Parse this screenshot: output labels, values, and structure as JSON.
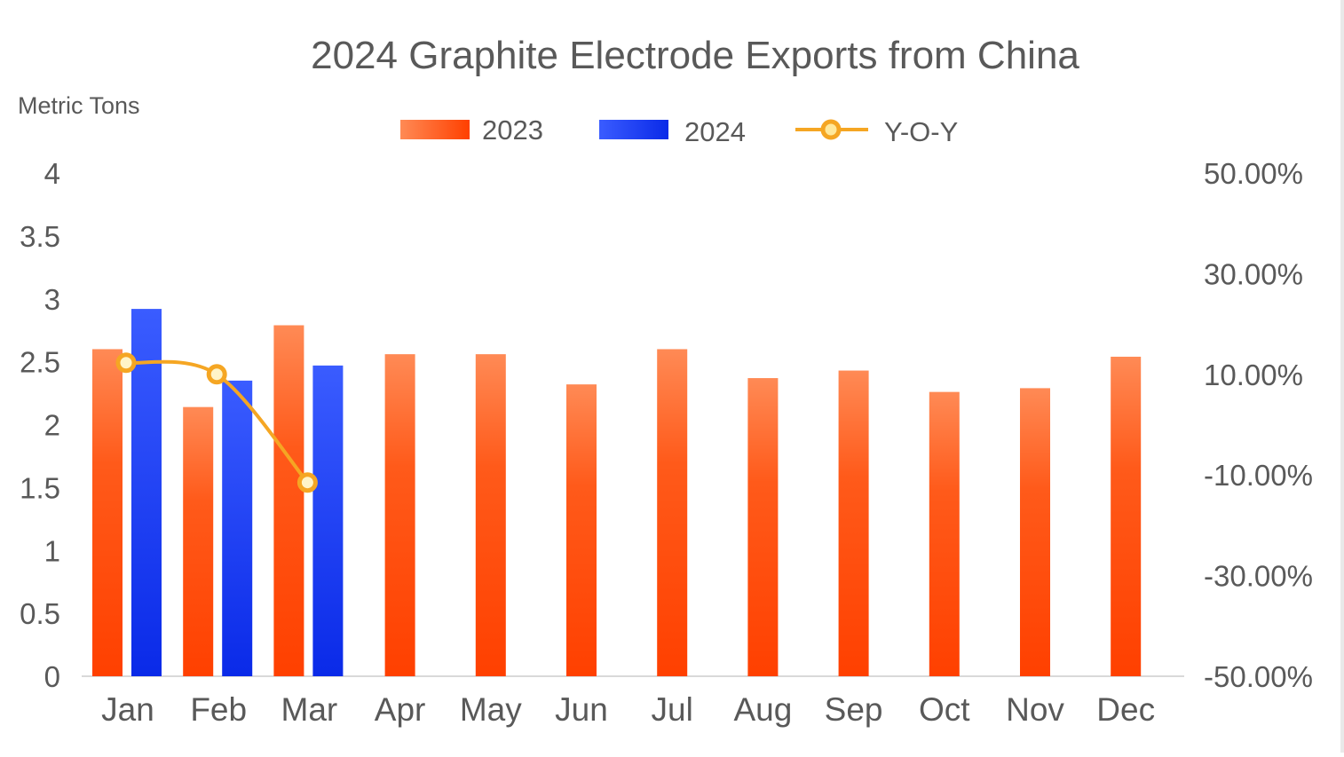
{
  "chart_data": {
    "type": "bar",
    "title": "2024 Graphite Electrode Exports from China",
    "y_axis_label": "Metric Tons",
    "categories": [
      "Jan",
      "Feb",
      "Mar",
      "Apr",
      "May",
      "Jun",
      "Jul",
      "Aug",
      "Sep",
      "Oct",
      "Nov",
      "Dec"
    ],
    "series": [
      {
        "name": "2023",
        "type": "bar",
        "axis": "left",
        "color": "#ff4500",
        "values": [
          2.6,
          2.14,
          2.79,
          2.56,
          2.56,
          2.32,
          2.6,
          2.37,
          2.43,
          2.26,
          2.29,
          2.54
        ]
      },
      {
        "name": "2024",
        "type": "bar",
        "axis": "left",
        "color": "#1a3cf5",
        "values": [
          2.92,
          2.35,
          2.47,
          null,
          null,
          null,
          null,
          null,
          null,
          null,
          null,
          null
        ]
      },
      {
        "name": "Y-O-Y",
        "type": "line",
        "axis": "right",
        "color": "#f5a623",
        "values": [
          12.3,
          10.0,
          -11.5,
          null,
          null,
          null,
          null,
          null,
          null,
          null,
          null,
          null
        ]
      }
    ],
    "y_left": {
      "min": 0,
      "max": 4,
      "ticks": [
        "0",
        "0.5",
        "1",
        "1.5",
        "2",
        "2.5",
        "3",
        "3.5",
        "4"
      ]
    },
    "y_right": {
      "min": -50,
      "max": 50,
      "ticks": [
        "-50.00%",
        "-30.00%",
        "-10.00%",
        "10.00%",
        "30.00%",
        "50.00%"
      ]
    },
    "legend_position": "top-center",
    "grid": false
  }
}
